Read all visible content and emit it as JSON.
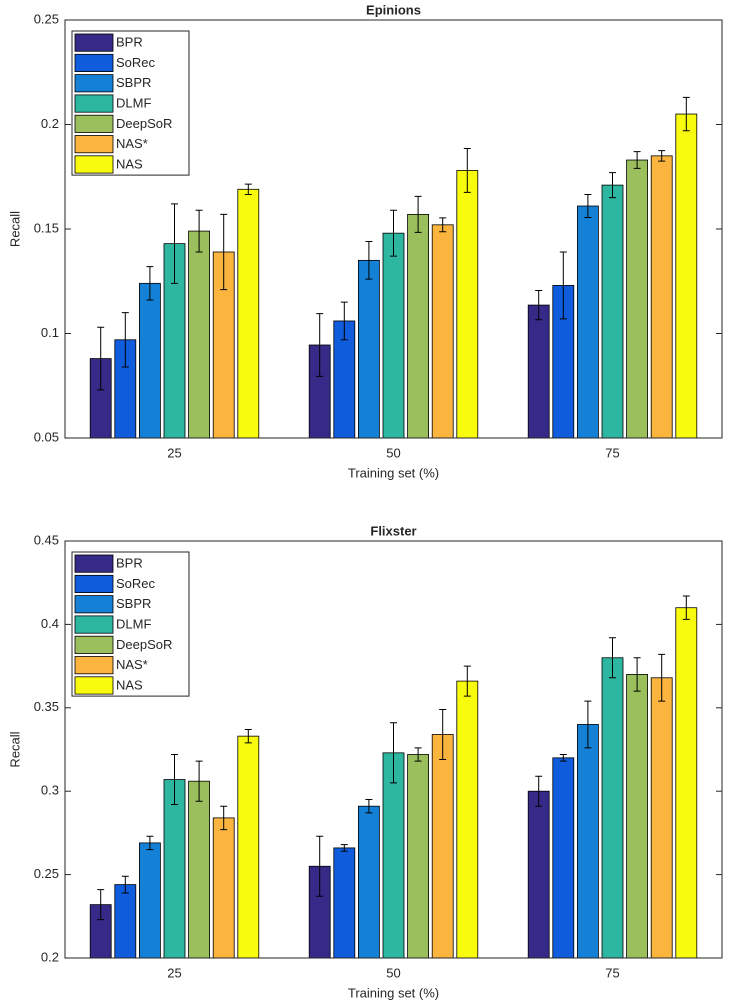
{
  "chart_data": [
    {
      "type": "bar",
      "title": "Epinions",
      "x_label": "Training set (%)",
      "y_label": "Recall",
      "categories": [
        "25",
        "50",
        "75"
      ],
      "ylim": [
        0.05,
        0.25
      ],
      "yticks": [
        0.05,
        0.1,
        0.15,
        0.2,
        0.25
      ],
      "legend": "upper left",
      "series": [
        {
          "name": "BPR",
          "color": "#352a87",
          "values": [
            0.088,
            0.0945,
            0.1136
          ],
          "errors": [
            0.015,
            0.015,
            0.007
          ]
        },
        {
          "name": "SoRec",
          "color": "#0f5cdd",
          "values": [
            0.097,
            0.106,
            0.123
          ],
          "errors": [
            0.013,
            0.009,
            0.016
          ]
        },
        {
          "name": "SBPR",
          "color": "#1481d6",
          "values": [
            0.124,
            0.135,
            0.161
          ],
          "errors": [
            0.008,
            0.009,
            0.0055
          ]
        },
        {
          "name": "DLMF",
          "color": "#2db7a0",
          "values": [
            0.143,
            0.148,
            0.171
          ],
          "errors": [
            0.019,
            0.011,
            0.006
          ]
        },
        {
          "name": "DeepSoR",
          "color": "#9bbf5d",
          "values": [
            0.149,
            0.157,
            0.183
          ],
          "errors": [
            0.01,
            0.0086,
            0.004
          ]
        },
        {
          "name": "NAS*",
          "color": "#fbb53f",
          "values": [
            0.139,
            0.152,
            0.185
          ],
          "errors": [
            0.018,
            0.0033,
            0.0025
          ]
        },
        {
          "name": "NAS",
          "color": "#f9fb0e",
          "values": [
            0.169,
            0.178,
            0.205
          ],
          "errors": [
            0.0025,
            0.0105,
            0.008
          ]
        }
      ]
    },
    {
      "type": "bar",
      "title": "Flixster",
      "x_label": "Training set (%)",
      "y_label": "Recall",
      "categories": [
        "25",
        "50",
        "75"
      ],
      "ylim": [
        0.2,
        0.45
      ],
      "yticks": [
        0.2,
        0.25,
        0.3,
        0.35,
        0.4,
        0.45
      ],
      "legend": "upper left",
      "series": [
        {
          "name": "BPR",
          "color": "#352a87",
          "values": [
            0.232,
            0.255,
            0.3
          ],
          "errors": [
            0.009,
            0.018,
            0.009
          ]
        },
        {
          "name": "SoRec",
          "color": "#0f5cdd",
          "values": [
            0.244,
            0.266,
            0.32
          ],
          "errors": [
            0.005,
            0.002,
            0.002
          ]
        },
        {
          "name": "SBPR",
          "color": "#1481d6",
          "values": [
            0.269,
            0.291,
            0.34
          ],
          "errors": [
            0.004,
            0.004,
            0.014
          ]
        },
        {
          "name": "DLMF",
          "color": "#2db7a0",
          "values": [
            0.307,
            0.323,
            0.38
          ],
          "errors": [
            0.015,
            0.018,
            0.012
          ]
        },
        {
          "name": "DeepSoR",
          "color": "#9bbf5d",
          "values": [
            0.306,
            0.322,
            0.37
          ],
          "errors": [
            0.012,
            0.004,
            0.01
          ]
        },
        {
          "name": "NAS*",
          "color": "#fbb53f",
          "values": [
            0.284,
            0.334,
            0.368
          ],
          "errors": [
            0.007,
            0.015,
            0.014
          ]
        },
        {
          "name": "NAS",
          "color": "#f9fb0e",
          "values": [
            0.333,
            0.366,
            0.41
          ],
          "errors": [
            0.004,
            0.009,
            0.007
          ]
        }
      ]
    }
  ]
}
